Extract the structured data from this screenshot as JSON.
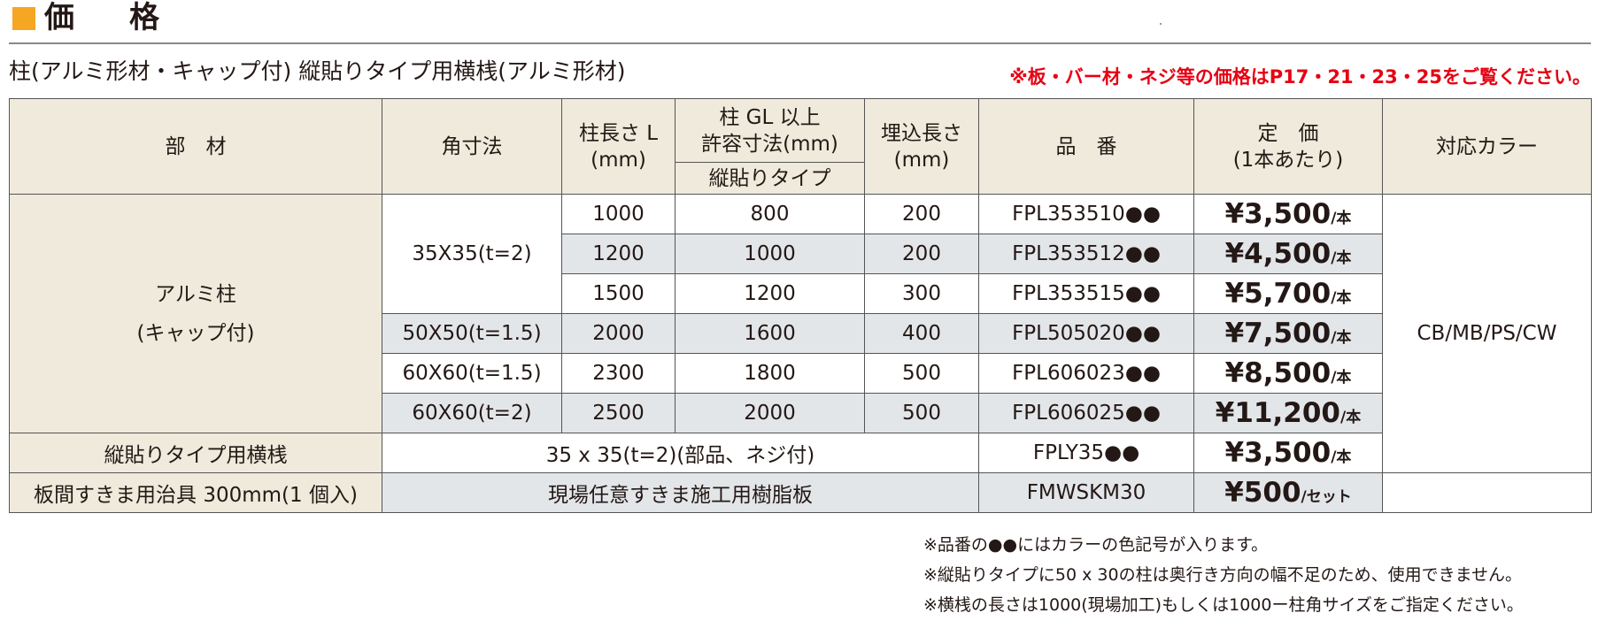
{
  "header": {
    "title": "価　格",
    "subtitle": "柱(アルミ形材・キャップ付) 縦貼りタイプ用横桟(アルミ形材)",
    "note": "※板・バー材・ネジ等の価格はP17・21・23・25をご覧ください。"
  },
  "table": {
    "headers": {
      "part": "部　材",
      "size": "角寸法",
      "length": "柱長さ L",
      "length_unit": "(mm)",
      "gl": "柱 GL 以上",
      "gl_sub": "許容寸法(mm)",
      "gl_type": "縦貼りタイプ",
      "embed": "埋込長さ",
      "embed_unit": "(mm)",
      "code": "品　番",
      "price": "定　価",
      "price_sub": "(1本あたり)",
      "color": "対応カラー"
    },
    "post_name": "アルミ柱",
    "post_sub": "(キャップ付)",
    "colors": "CB/MB/PS/CW",
    "rows": [
      {
        "size": "35X35(t=2)",
        "length": "1000",
        "gl": "800",
        "embed": "200",
        "code": "FPL353510●●",
        "price": "¥3,500",
        "unit": "/本"
      },
      {
        "size": "",
        "length": "1200",
        "gl": "1000",
        "embed": "200",
        "code": "FPL353512●●",
        "price": "¥4,500",
        "unit": "/本"
      },
      {
        "size": "",
        "length": "1500",
        "gl": "1200",
        "embed": "300",
        "code": "FPL353515●●",
        "price": "¥5,700",
        "unit": "/本"
      },
      {
        "size": "50X50(t=1.5)",
        "length": "2000",
        "gl": "1600",
        "embed": "400",
        "code": "FPL505020●●",
        "price": "¥7,500",
        "unit": "/本"
      },
      {
        "size": "60X60(t=1.5)",
        "length": "2300",
        "gl": "1800",
        "embed": "500",
        "code": "FPL606023●●",
        "price": "¥8,500",
        "unit": "/本"
      },
      {
        "size": "60X60(t=2)",
        "length": "2500",
        "gl": "2000",
        "embed": "500",
        "code": "FPL606025●●",
        "price": "¥11,200",
        "unit": "/本"
      }
    ],
    "rail": {
      "name": "縦貼りタイプ用横桟",
      "desc": "35 x 35(t=2)(部品、ネジ付)",
      "code": "FPLY35●●",
      "price": "¥3,500",
      "unit": "/本"
    },
    "jig": {
      "name": "板間すきま用治具 300mm(1 個入)",
      "desc": "現場任意すきま施工用樹脂板",
      "code": "FMWSKM30",
      "price": "¥500",
      "unit": "/セット"
    }
  },
  "footnotes": [
    "※品番の●●にはカラーの色記号が入ります。",
    "※縦貼りタイプに50 x 30の柱は奥行き方向の幅不足のため、使用できません。",
    "※横桟の長さは1000(現場加工)もしくは1000ー柱角サイズをご指定ください。"
  ],
  "colors": {
    "accent": "#f5a623",
    "note_red": "#e60012",
    "header_bg": "#efeadb",
    "row_grey": "#e3e6e9"
  }
}
